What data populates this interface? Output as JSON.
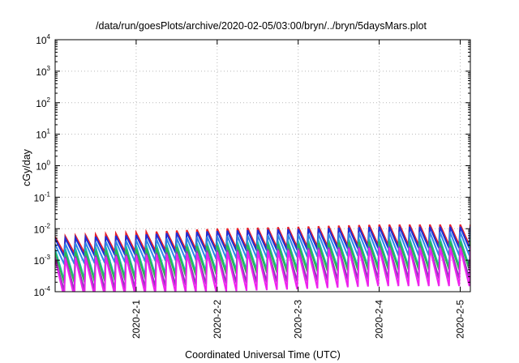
{
  "chart_data": {
    "type": "line",
    "title": "/data/run/goesPlots/archive/2020-02-05/03:00/bryn/../bryn/5daysMars.plot",
    "xlabel": "Coordinated Universal Time (UTC)",
    "ylabel": "cGy/day",
    "yscale": "log",
    "ylim": [
      0.0001,
      10000
    ],
    "y_ticks": [
      {
        "base": "10",
        "exp": "-4"
      },
      {
        "base": "10",
        "exp": "-3"
      },
      {
        "base": "10",
        "exp": "-2"
      },
      {
        "base": "10",
        "exp": "-1"
      },
      {
        "base": "10",
        "exp": "0"
      },
      {
        "base": "10",
        "exp": "1"
      },
      {
        "base": "10",
        "exp": "2"
      },
      {
        "base": "10",
        "exp": "3"
      },
      {
        "base": "10",
        "exp": "4"
      }
    ],
    "xlim": [
      "2020-01-31 00:00",
      "2020-02-05 03:00"
    ],
    "x_ticks": [
      {
        "label": "2020-2-1",
        "value": "2020-02-01"
      },
      {
        "label": "2020-2-2",
        "value": "2020-02-02"
      },
      {
        "label": "2020-2-3",
        "value": "2020-02-03"
      },
      {
        "label": "2020-2-4",
        "value": "2020-02-04"
      },
      {
        "label": "2020-2-5",
        "value": "2020-02-05"
      }
    ],
    "grid": true,
    "sawtooth_period_hours": 3,
    "series": [
      {
        "color": "#e8202a",
        "peak": [
          0.0055,
          0.0075,
          0.01,
          0.0115,
          0.0135
        ],
        "floor": [
          0.0016,
          0.0019,
          0.0023,
          0.0026,
          0.003
        ]
      },
      {
        "color": "#1c2fd6",
        "peak": [
          0.0048,
          0.0063,
          0.0085,
          0.0098,
          0.0115
        ],
        "floor": [
          0.00125,
          0.0015,
          0.0019,
          0.0021,
          0.0024
        ]
      },
      {
        "color": "#2f86e8",
        "peak": [
          0.0032,
          0.0043,
          0.0058,
          0.0066,
          0.0078
        ],
        "floor": [
          0.00072,
          0.00088,
          0.0011,
          0.00125,
          0.0014
        ]
      },
      {
        "color": "#17b8b0",
        "peak": [
          0.0022,
          0.0029,
          0.0036,
          0.0041,
          0.0048
        ],
        "floor": [
          0.00022,
          0.0003,
          0.00045,
          0.00052,
          0.00062
        ]
      },
      {
        "color": "#2fb84a",
        "peak": [
          0.0017,
          0.0023,
          0.0029,
          0.0033,
          0.0039
        ],
        "floor": [
          0.00018,
          0.00024,
          0.00036,
          0.00042,
          0.0005
        ]
      },
      {
        "color": "#8a3cb8",
        "peak": [
          0.00125,
          0.0016,
          0.0021,
          0.0024,
          0.0028
        ],
        "floor": [
          0.0001,
          0.00013,
          0.00018,
          0.00021,
          0.00026
        ]
      },
      {
        "color": "#ee22ee",
        "peak": [
          0.0011,
          0.0014,
          0.0018,
          0.0021,
          0.0025
        ],
        "floor": [
          6e-05,
          8e-05,
          0.0001,
          0.00012,
          0.00015
        ]
      }
    ]
  }
}
